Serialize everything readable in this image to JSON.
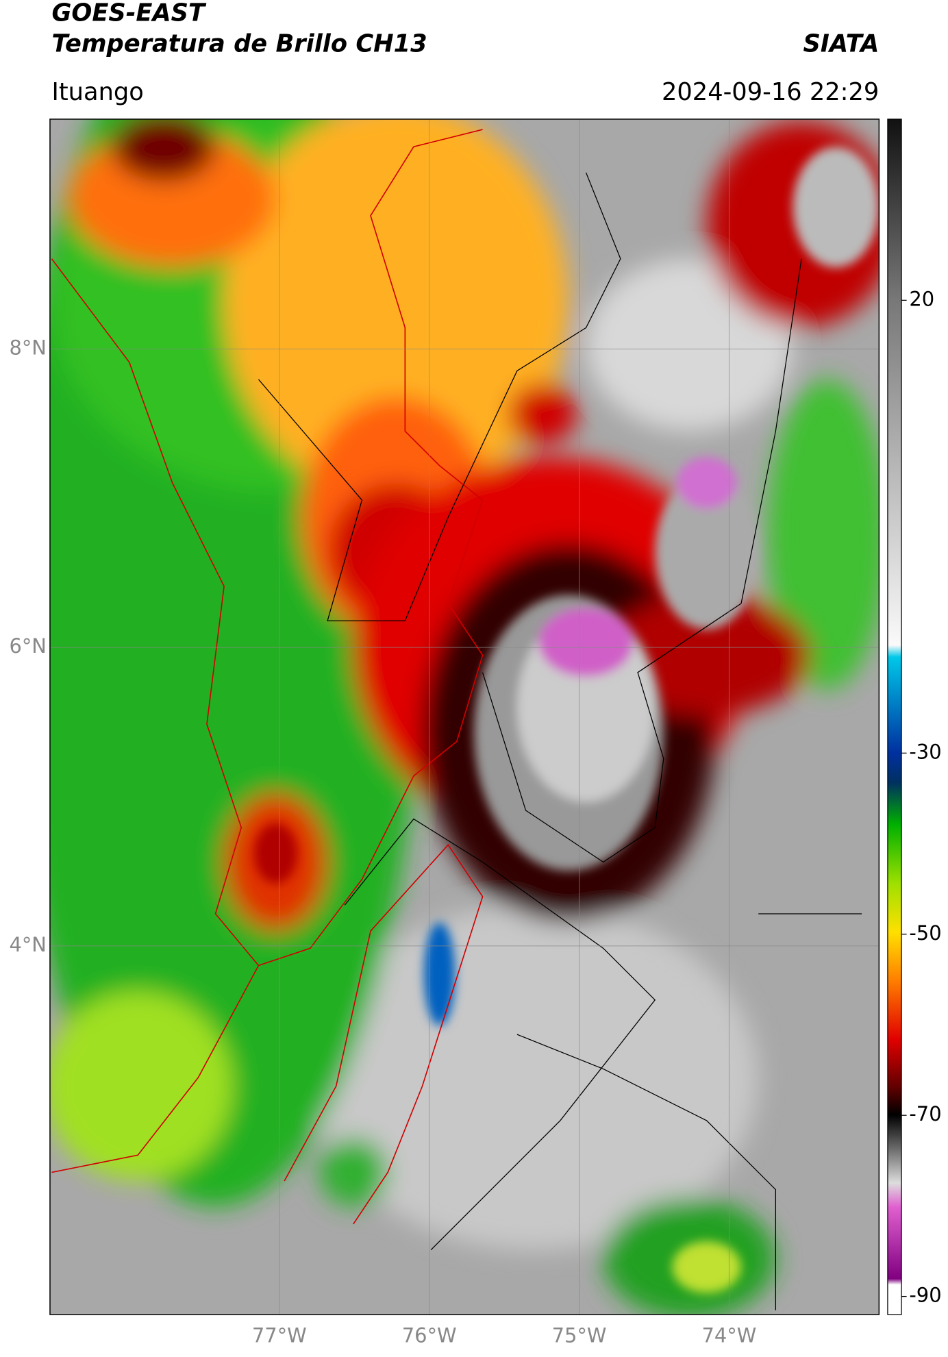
{
  "header": {
    "title": "GOES-EAST",
    "subtitle": "Temperatura de Brillo CH13",
    "source": "SIATA",
    "location": "Ituango",
    "datetime": "2024-09-16 22:29"
  },
  "map": {
    "lon_range": [
      -78.53,
      -73.0
    ],
    "lat_range": [
      1.53,
      9.54
    ],
    "lon_ticks": [
      {
        "value": -77,
        "label": "77°W"
      },
      {
        "value": -76,
        "label": "76°W"
      },
      {
        "value": -75,
        "label": "75°W"
      },
      {
        "value": -74,
        "label": "74°W"
      }
    ],
    "lat_ticks": [
      {
        "value": 8,
        "label": "8°N"
      },
      {
        "value": 6,
        "label": "6°N"
      },
      {
        "value": 4,
        "label": "4°N"
      }
    ],
    "grid": true
  },
  "colorbar": {
    "range": [
      -92,
      40
    ],
    "ticks": [
      20,
      -30,
      -50,
      -70,
      -90
    ]
  }
}
